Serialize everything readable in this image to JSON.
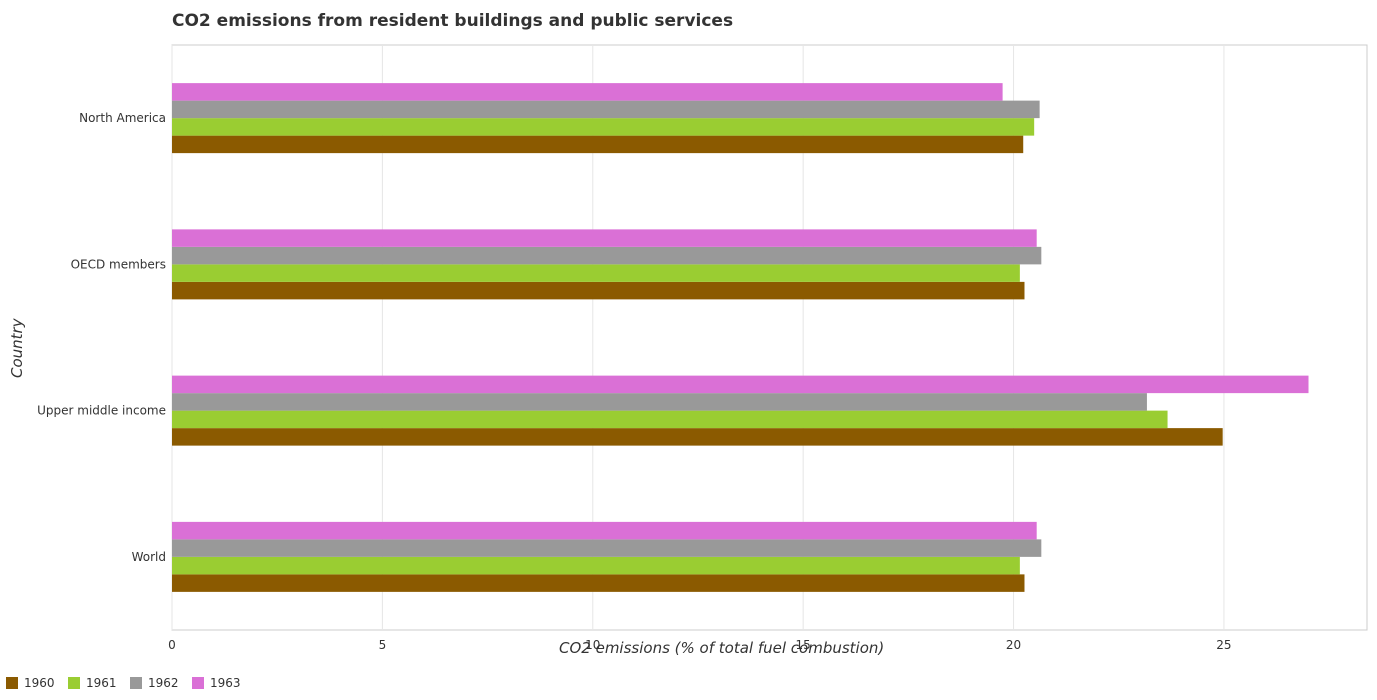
{
  "chart_data": {
    "type": "bar",
    "orientation": "horizontal",
    "title": "CO2 emissions from resident buildings and public services",
    "xlabel": "CO2 emissions (% of total fuel combustion)",
    "ylabel": "Country",
    "xlim": [
      0,
      28.4
    ],
    "xticks": [
      0,
      5,
      10,
      15,
      20,
      25
    ],
    "grid": true,
    "legend_position": "bottom-left",
    "categories": [
      "North America",
      "OECD members",
      "Upper middle income",
      "World"
    ],
    "series": [
      {
        "name": "1960",
        "color": "#8B5A00",
        "values": [
          20.23,
          20.26,
          24.97,
          20.26
        ]
      },
      {
        "name": "1961",
        "color": "#9ACD32",
        "values": [
          20.49,
          20.15,
          23.66,
          20.15
        ]
      },
      {
        "name": "1962",
        "color": "#999999",
        "values": [
          20.62,
          20.66,
          23.17,
          20.66
        ]
      },
      {
        "name": "1963",
        "color": "#DA70D6",
        "values": [
          19.74,
          20.55,
          27.01,
          20.55
        ]
      }
    ]
  }
}
